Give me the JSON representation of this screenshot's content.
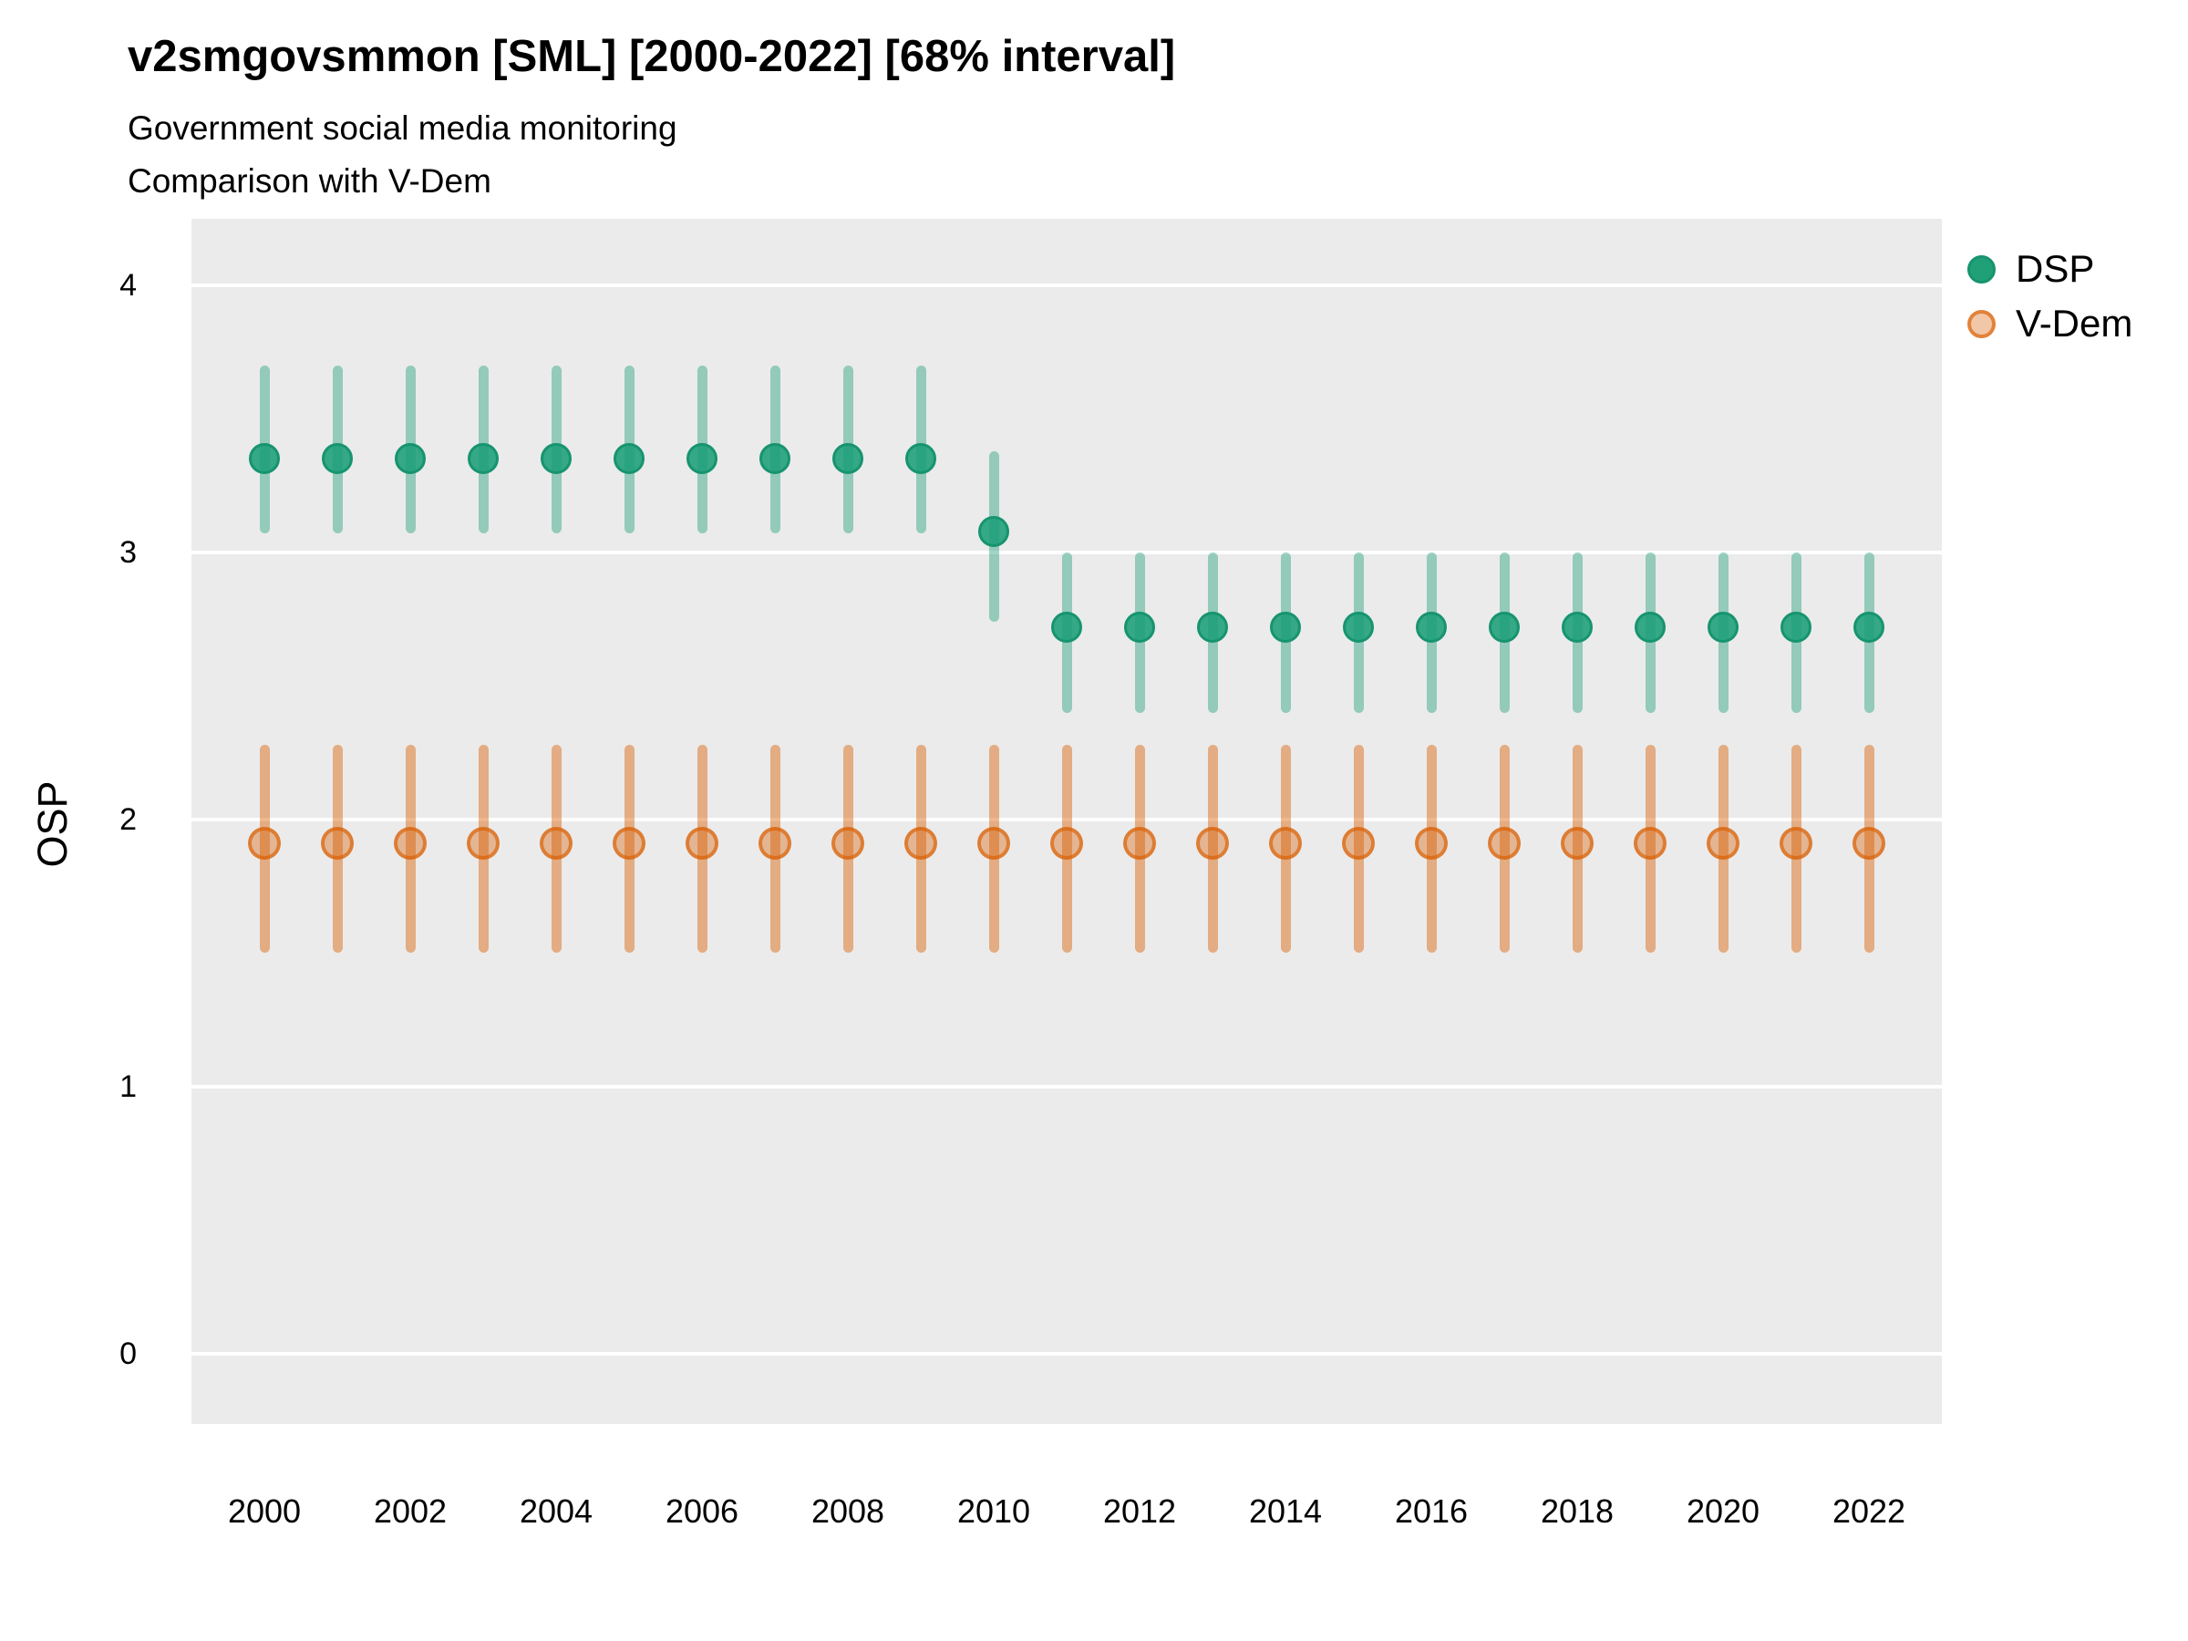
{
  "chart_data": {
    "type": "scatter",
    "title": "v2smgovsmmon [SML] [2000-2022] [68% interval]",
    "subtitle_lines": [
      "Government social media monitoring",
      "Comparison with V-Dem"
    ],
    "xlabel": "",
    "ylabel": "OSP",
    "interval_label": "68% interval",
    "grid": "horizontal-major-only",
    "panel_bg": "#EBEBEB",
    "gridline_color": "#FFFFFF",
    "legend_position": "top-right",
    "x": [
      2000,
      2001,
      2002,
      2003,
      2004,
      2005,
      2006,
      2007,
      2008,
      2009,
      2010,
      2011,
      2012,
      2013,
      2014,
      2015,
      2016,
      2017,
      2018,
      2019,
      2020,
      2021,
      2022
    ],
    "x_ticks": [
      2000,
      2002,
      2004,
      2006,
      2008,
      2010,
      2012,
      2014,
      2016,
      2018,
      2020,
      2022
    ],
    "y_ticks": [
      0,
      1,
      2,
      3,
      4
    ],
    "ylim": [
      -0.26,
      4.25
    ],
    "legend": [
      {
        "name": "DSP",
        "color": "#1B9E77"
      },
      {
        "name": "V-Dem",
        "color": "#D95F02"
      }
    ],
    "series": [
      {
        "name": "DSP",
        "color": "#1B9E77",
        "style": "filled-circle-with-interval-bar",
        "est": [
          3.35,
          3.35,
          3.35,
          3.35,
          3.35,
          3.35,
          3.35,
          3.35,
          3.35,
          3.35,
          3.08,
          2.72,
          2.72,
          2.72,
          2.72,
          2.72,
          2.72,
          2.72,
          2.72,
          2.72,
          2.72,
          2.72,
          2.72
        ],
        "lo": [
          3.07,
          3.07,
          3.07,
          3.07,
          3.07,
          3.07,
          3.07,
          3.07,
          3.07,
          3.07,
          2.74,
          2.4,
          2.4,
          2.4,
          2.4,
          2.4,
          2.4,
          2.4,
          2.4,
          2.4,
          2.4,
          2.4,
          2.4
        ],
        "hi": [
          3.7,
          3.7,
          3.7,
          3.7,
          3.7,
          3.7,
          3.7,
          3.7,
          3.7,
          3.7,
          3.38,
          3.0,
          3.0,
          3.0,
          3.0,
          3.0,
          3.0,
          3.0,
          3.0,
          3.0,
          3.0,
          3.0,
          3.0
        ]
      },
      {
        "name": "V-Dem",
        "color": "#D95F02",
        "style": "open-circle-with-interval-bar",
        "est": [
          1.91,
          1.91,
          1.91,
          1.91,
          1.91,
          1.91,
          1.91,
          1.91,
          1.91,
          1.91,
          1.91,
          1.91,
          1.91,
          1.91,
          1.91,
          1.91,
          1.91,
          1.91,
          1.91,
          1.91,
          1.91,
          1.91,
          1.91
        ],
        "lo": [
          1.5,
          1.5,
          1.5,
          1.5,
          1.5,
          1.5,
          1.5,
          1.5,
          1.5,
          1.5,
          1.5,
          1.5,
          1.5,
          1.5,
          1.5,
          1.5,
          1.5,
          1.5,
          1.5,
          1.5,
          1.5,
          1.5,
          1.5
        ],
        "hi": [
          2.28,
          2.28,
          2.28,
          2.28,
          2.28,
          2.28,
          2.28,
          2.28,
          2.28,
          2.28,
          2.28,
          2.28,
          2.28,
          2.28,
          2.28,
          2.28,
          2.28,
          2.28,
          2.28,
          2.28,
          2.28,
          2.28,
          2.28
        ]
      }
    ]
  }
}
